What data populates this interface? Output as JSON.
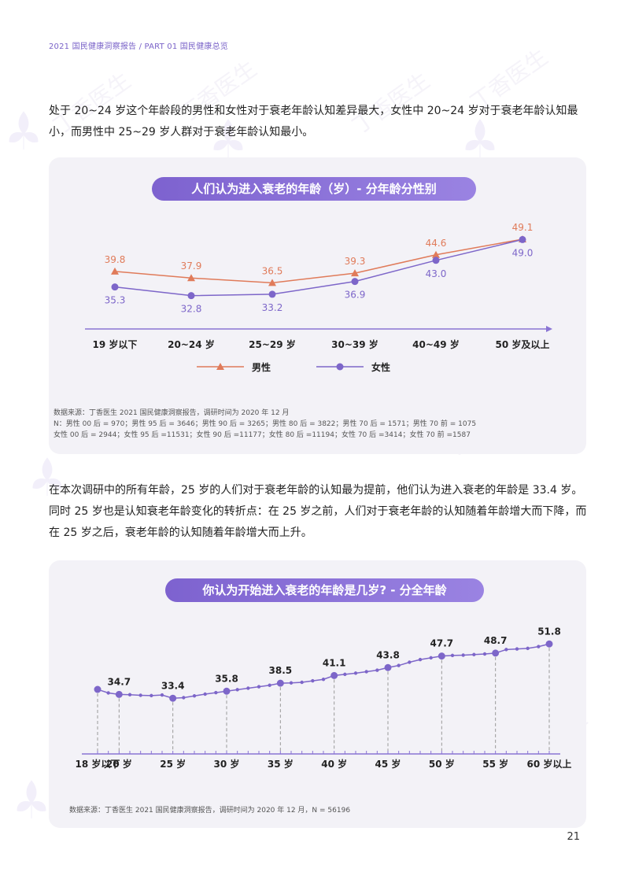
{
  "header": {
    "title": "2021 国民健康洞察报告 / PART 01 国民健康总览"
  },
  "watermark": "丁香医生",
  "para1": "处于 20~24 岁这个年龄段的男性和女性对于衰老年龄认知差异最大，女性中 20~24 岁对于衰老年龄认知最小，而男性中 25~29 岁人群对于衰老年龄认知最小。",
  "chart1": {
    "title": "人们认为进入衰老的年龄（岁）- 分年龄分性别",
    "legend_male": "男性",
    "legend_female": "女性",
    "source_lines": [
      "数据来源：丁香医生 2021 国民健康洞察报告，调研时间为 2020 年 12 月",
      "N：男性 00 后 = 970；男性 95 后 = 3646；男性 90 后 = 3265；男性 80 后 = 3822；男性 70 后 = 1571；男性 70 前 = 1075",
      "女性 00 后 = 2944；女性 95 后 =11531；女性 90 后 =11177；女性 80 后 =11194；女性 70 后 =3414；女性 70 前 =1587"
    ]
  },
  "para2": "在本次调研中的所有年龄，25 岁的人们对于衰老年龄的认知最为提前，他们认为进入衰老的年龄是 33.4 岁。同时 25 岁也是认知衰老年龄变化的转折点：在 25 岁之前，人们对于衰老年龄的认知随着年龄增大而下降，而在 25 岁之后，衰老年龄的认知随着年龄增大而上升。",
  "chart2": {
    "title": "你认为开始进入衰老的年龄是几岁? - 分全年龄",
    "source": "数据来源：丁香医生 2021 国民健康洞察报告，调研时间为 2020 年 12 月，N = 56196"
  },
  "page_number": "21",
  "chart_data": [
    {
      "type": "line",
      "categories": [
        "19 岁以下",
        "20~24 岁",
        "25~29 岁",
        "30~39 岁",
        "40~49 岁",
        "50 岁及以上"
      ],
      "series": [
        {
          "name": "男性",
          "values": [
            39.8,
            37.9,
            36.5,
            39.3,
            44.6,
            49.1
          ],
          "color": "#e07b5a",
          "marker": "triangle"
        },
        {
          "name": "女性",
          "values": [
            35.3,
            32.8,
            33.2,
            36.9,
            43.0,
            49.0
          ],
          "color": "#7d66c9",
          "marker": "circle"
        }
      ],
      "title": "人们认为进入衰老的年龄（岁）- 分年龄分性别",
      "legend": "bottom"
    },
    {
      "type": "line",
      "x": [
        18,
        19,
        20,
        21,
        22,
        23,
        24,
        25,
        26,
        27,
        28,
        29,
        30,
        31,
        32,
        33,
        34,
        35,
        36,
        37,
        38,
        39,
        40,
        41,
        42,
        43,
        44,
        45,
        46,
        47,
        48,
        49,
        50,
        51,
        52,
        53,
        54,
        55,
        56,
        57,
        58,
        59,
        60
      ],
      "values": [
        36.4,
        35.2,
        34.7,
        34.6,
        34.4,
        34.3,
        34.5,
        33.4,
        33.6,
        34.2,
        34.8,
        35.3,
        35.8,
        36.3,
        36.8,
        37.3,
        37.8,
        38.5,
        38.6,
        38.8,
        39.3,
        39.8,
        41.1,
        41.5,
        41.9,
        42.4,
        42.9,
        43.8,
        44.5,
        45.6,
        46.5,
        47.1,
        47.7,
        47.9,
        48.0,
        48.2,
        48.4,
        48.7,
        49.9,
        50.1,
        50.3,
        50.9,
        51.8
      ],
      "tick_labels": [
        "18 岁以下",
        "20 岁",
        "25 岁",
        "30 岁",
        "35 岁",
        "40 岁",
        "45 岁",
        "50 岁",
        "55 岁",
        "60 岁以上"
      ],
      "tick_x": [
        18,
        20,
        25,
        30,
        35,
        40,
        45,
        50,
        55,
        60
      ],
      "labeled_points": [
        {
          "x": 20,
          "label": "34.7"
        },
        {
          "x": 25,
          "label": "33.4"
        },
        {
          "x": 30,
          "label": "35.8"
        },
        {
          "x": 35,
          "label": "38.5"
        },
        {
          "x": 40,
          "label": "41.1"
        },
        {
          "x": 45,
          "label": "43.8"
        },
        {
          "x": 50,
          "label": "47.7"
        },
        {
          "x": 55,
          "label": "48.7"
        },
        {
          "x": 60,
          "label": "51.8"
        }
      ],
      "color": "#7d66c9",
      "title": "你认为开始进入衰老的年龄是几岁? - 分全年龄"
    }
  ]
}
